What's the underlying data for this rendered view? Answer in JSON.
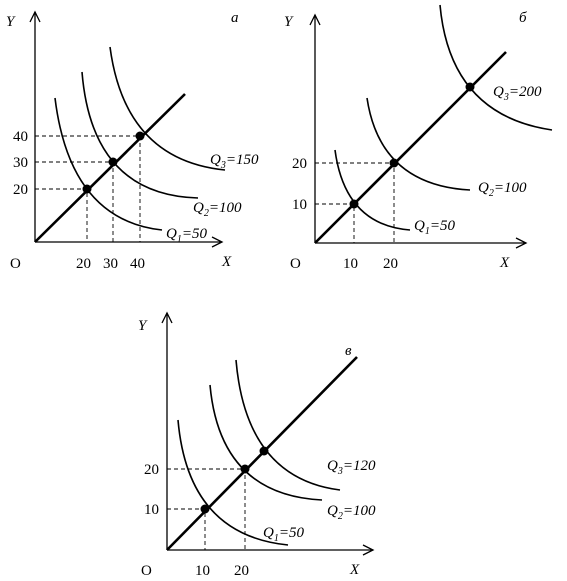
{
  "panels": [
    {
      "id": "a",
      "letter": "а",
      "origin_label": "O",
      "x_axis_label": "X",
      "y_axis_label": "Y",
      "x_ticks": [
        "20",
        "30",
        "40"
      ],
      "y_ticks": [
        "20",
        "30",
        "40"
      ],
      "curves": [
        {
          "prefix": "Q",
          "sub": "1",
          "value": "=50"
        },
        {
          "prefix": "Q",
          "sub": "2",
          "value": "=100"
        },
        {
          "prefix": "Q",
          "sub": "3",
          "value": "=150"
        }
      ]
    },
    {
      "id": "b",
      "letter": "б",
      "origin_label": "O",
      "x_axis_label": "X",
      "y_axis_label": "Y",
      "x_ticks": [
        "10",
        "20"
      ],
      "y_ticks": [
        "10",
        "20"
      ],
      "curves": [
        {
          "prefix": "Q",
          "sub": "1",
          "value": "=50"
        },
        {
          "prefix": "Q",
          "sub": "2",
          "value": "=100"
        },
        {
          "prefix": "Q",
          "sub": "3",
          "value": "=200"
        }
      ]
    },
    {
      "id": "c",
      "letter": "в",
      "origin_label": "O",
      "x_axis_label": "X",
      "y_axis_label": "Y",
      "x_ticks": [
        "10",
        "20"
      ],
      "y_ticks": [
        "10",
        "20"
      ],
      "curves": [
        {
          "prefix": "Q",
          "sub": "1",
          "value": "=50"
        },
        {
          "prefix": "Q",
          "sub": "2",
          "value": "=100"
        },
        {
          "prefix": "Q",
          "sub": "3",
          "value": "=120"
        }
      ]
    }
  ]
}
